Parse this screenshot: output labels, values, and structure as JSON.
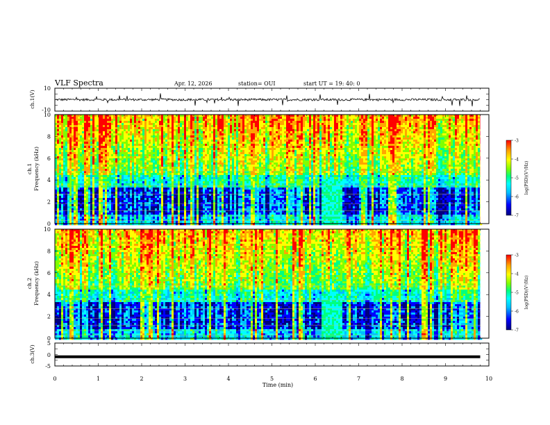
{
  "header": {
    "title": "VLF Spectra",
    "date": "Apr. 12, 2026",
    "station": "station= OUI",
    "start": "start  UT =   19: 40: 0"
  },
  "colors": {
    "palette": [
      "#000080",
      "#0000ff",
      "#00bfff",
      "#00ffff",
      "#00ff80",
      "#80ff00",
      "#ffff00",
      "#ffa500",
      "#ff0000"
    ],
    "line": "#000000"
  },
  "chart_data": [
    {
      "type": "line",
      "name": "ch1-waveform",
      "ylabel": "ch.1(V)",
      "ylim": [
        -10,
        10
      ],
      "yticks": [
        "10",
        "-10"
      ],
      "xlim": [
        0,
        10
      ],
      "baseline": 0,
      "description_values": {
        "noise_amplitude_V": 2,
        "spike_max_V": 6
      }
    },
    {
      "type": "heatmap",
      "name": "ch1-spectrogram",
      "ylabel_line1": "ch.1",
      "ylabel_line2": "Frequency (kHz)",
      "ylim": [
        0,
        10
      ],
      "yticks": [
        "0",
        "2",
        "4",
        "6",
        "8",
        "10"
      ],
      "xlim": [
        0,
        9.8
      ],
      "colorbar": {
        "label": "log(PSD)(V²/Hz)",
        "range": [
          -7,
          -3
        ],
        "ticks": [
          "-3",
          "-4",
          "-5",
          "-6",
          "-7"
        ]
      }
    },
    {
      "type": "heatmap",
      "name": "ch2-spectrogram",
      "ylabel_line1": "ch.2",
      "ylabel_line2": "Frequency (kHz)",
      "ylim": [
        0,
        10
      ],
      "yticks": [
        "0",
        "2",
        "4",
        "6",
        "8",
        "10"
      ],
      "xlim": [
        0,
        9.8
      ],
      "colorbar": {
        "label": "log(PSD)(V²/Hz)",
        "range": [
          -7,
          -3
        ],
        "ticks": [
          "-3",
          "-4",
          "-5",
          "-6",
          "-7"
        ]
      }
    },
    {
      "type": "line",
      "name": "ch3-waveform",
      "ylabel": "ch.3(V)",
      "ylim": [
        -5,
        5
      ],
      "yticks": [
        "5",
        "0",
        "-5"
      ],
      "xlim": [
        0,
        10
      ],
      "values": {
        "constant_level_V": -1
      }
    }
  ],
  "xaxis": {
    "label": "Time (min)",
    "ticks": [
      "0",
      "1",
      "2",
      "3",
      "4",
      "5",
      "6",
      "7",
      "8",
      "9",
      "10"
    ]
  }
}
